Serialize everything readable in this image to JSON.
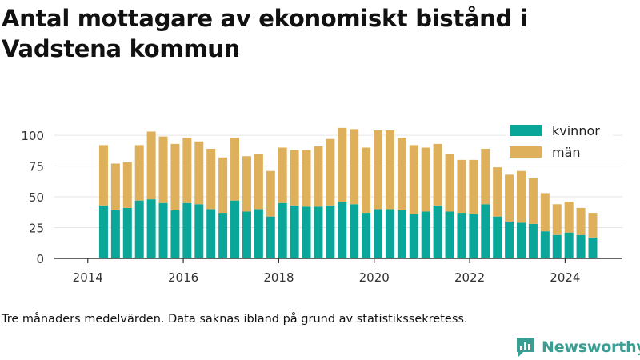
{
  "title": "Antal mottagare av ekonomiskt bistånd i Vadstena kommun",
  "note": "Tre månaders medelvärden. Data saknas ibland på grund av statistikssekretess.",
  "brand": {
    "name": "Newsworthy"
  },
  "colors": {
    "kvinnor": "#0aa69a",
    "man": "#deb05c",
    "axis": "#333333",
    "grid": "#e6e6e6",
    "brand": "#3a9e93"
  },
  "chart_data": {
    "type": "bar",
    "stacked": true,
    "title": "Antal mottagare av ekonomiskt bistånd i Vadstena kommun",
    "xlabel": "",
    "ylabel": "",
    "x_ticks": [
      2014,
      2016,
      2018,
      2020,
      2022,
      2024
    ],
    "xlim": [
      2013.3,
      2025.2
    ],
    "y_ticks": [
      0,
      25,
      50,
      75,
      100
    ],
    "ylim": [
      0,
      115
    ],
    "grid": "horizontal",
    "legend_position": "top-right",
    "x": [
      2014.33,
      2014.58,
      2014.83,
      2015.08,
      2015.33,
      2015.58,
      2015.83,
      2016.08,
      2016.33,
      2016.58,
      2016.83,
      2017.08,
      2017.33,
      2017.58,
      2017.83,
      2018.08,
      2018.33,
      2018.58,
      2018.83,
      2019.08,
      2019.33,
      2019.58,
      2019.83,
      2020.08,
      2020.33,
      2020.58,
      2020.83,
      2021.08,
      2021.33,
      2021.58,
      2021.83,
      2022.08,
      2022.33,
      2022.58,
      2022.83,
      2023.08,
      2023.33,
      2023.58,
      2023.83,
      2024.08,
      2024.33,
      2024.58
    ],
    "series": [
      {
        "name": "kvinnor",
        "values": [
          43,
          39,
          41,
          47,
          48,
          45,
          39,
          45,
          44,
          40,
          37,
          47,
          38,
          40,
          34,
          45,
          43,
          42,
          42,
          43,
          46,
          44,
          37,
          40,
          40,
          39,
          36,
          38,
          43,
          38,
          37,
          36,
          44,
          34,
          30,
          29,
          28,
          22,
          19,
          21,
          19,
          17
        ]
      },
      {
        "name": "män",
        "values": [
          49,
          38,
          37,
          45,
          55,
          54,
          54,
          53,
          51,
          49,
          45,
          51,
          45,
          45,
          37,
          45,
          45,
          46,
          49,
          54,
          60,
          61,
          53,
          64,
          64,
          59,
          56,
          52,
          50,
          47,
          43,
          44,
          45,
          40,
          38,
          42,
          37,
          31,
          25,
          25,
          22,
          20
        ]
      }
    ],
    "legend": [
      "kvinnor",
      "män"
    ]
  }
}
